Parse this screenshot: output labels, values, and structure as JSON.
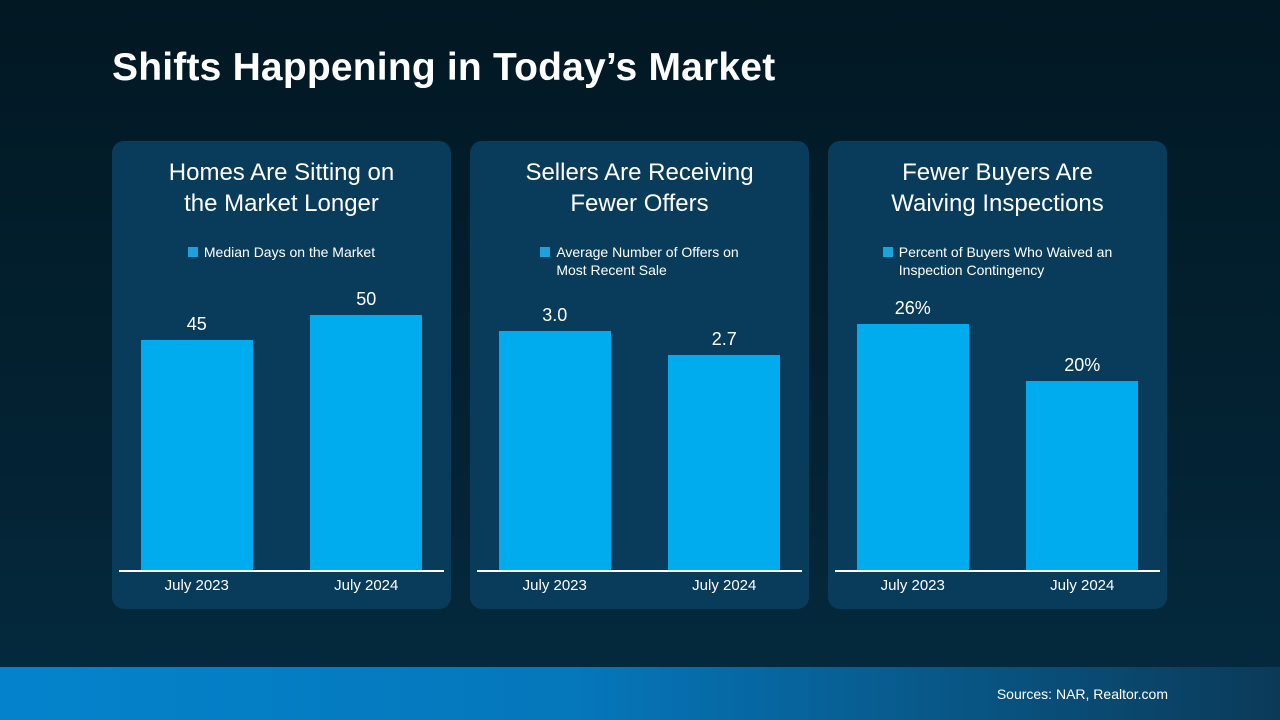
{
  "slide": {
    "title": "Shifts Happening in Today’s Market",
    "source_note": "Sources: NAR, Realtor.com"
  },
  "colors": {
    "background_top": "#021823",
    "background_bottom": "#052B40",
    "card_background": "#093C5B",
    "bar_fill": "#00ACEE",
    "legend_swatch": "#1CA3DC",
    "footer_gradient_left": "#0483CC",
    "footer_gradient_right": "#0B3A58",
    "text": "#FFFFFF"
  },
  "chart_data": [
    {
      "type": "bar",
      "title": "Homes Are Sitting on\nthe Market Longer",
      "legend": "Median Days on the Market",
      "categories": [
        "July 2023",
        "July 2024"
      ],
      "values": [
        45,
        50
      ],
      "value_labels": [
        "45",
        "50"
      ],
      "ylim": [
        0,
        50
      ],
      "grid": false,
      "legend_position": "top"
    },
    {
      "type": "bar",
      "title": "Sellers Are Receiving\nFewer Offers",
      "legend": "Average Number of Offers on\nMost Recent Sale",
      "categories": [
        "July 2023",
        "July 2024"
      ],
      "values": [
        3.0,
        2.7
      ],
      "value_labels": [
        "3.0",
        "2.7"
      ],
      "ylim": [
        0,
        3.2
      ],
      "grid": false,
      "legend_position": "top"
    },
    {
      "type": "bar",
      "title": "Fewer Buyers Are\nWaiving Inspections",
      "legend": "Percent of Buyers Who Waived an\nInspection Contingency",
      "categories": [
        "July 2023",
        "July 2024"
      ],
      "values": [
        26,
        20
      ],
      "value_labels": [
        "26%",
        "20%"
      ],
      "ylim": [
        0,
        27
      ],
      "grid": false,
      "legend_position": "top"
    }
  ]
}
